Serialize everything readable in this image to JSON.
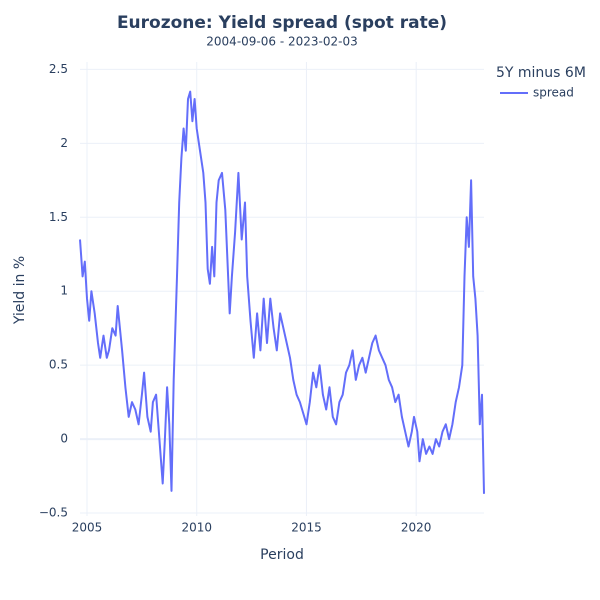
{
  "chart_data": {
    "type": "line",
    "title": "Eurozone: Yield spread (spot rate)",
    "subtitle": "2004-09-06 - 2023-02-03",
    "x_label": "Period",
    "y_label": "Yield in %",
    "legend_title": "5Y minus 6M",
    "legend_position": "top-right",
    "grid": true,
    "xlim": [
      2004.68,
      2023.09
    ],
    "xticks": [
      2005,
      2010,
      2015,
      2020
    ],
    "ylim": [
      -0.52,
      2.55
    ],
    "yticks": [
      {
        "value": -0.5,
        "label": "−0.5"
      },
      0,
      0.5,
      1,
      1.5,
      2,
      2.5
    ],
    "x": [
      2004.68,
      2004.8,
      2004.9,
      2005.0,
      2005.1,
      2005.2,
      2005.35,
      2005.5,
      2005.6,
      2005.75,
      2005.9,
      2006.0,
      2006.15,
      2006.3,
      2006.4,
      2006.5,
      2006.6,
      2006.75,
      2006.9,
      2007.05,
      2007.2,
      2007.35,
      2007.5,
      2007.6,
      2007.75,
      2007.9,
      2008.0,
      2008.15,
      2008.3,
      2008.45,
      2008.55,
      2008.65,
      2008.75,
      2008.85,
      2008.95,
      2009.1,
      2009.2,
      2009.3,
      2009.4,
      2009.5,
      2009.6,
      2009.7,
      2009.8,
      2009.9,
      2010.0,
      2010.15,
      2010.3,
      2010.4,
      2010.5,
      2010.6,
      2010.7,
      2010.8,
      2010.9,
      2011.0,
      2011.15,
      2011.3,
      2011.4,
      2011.5,
      2011.6,
      2011.75,
      2011.9,
      2012.05,
      2012.2,
      2012.3,
      2012.45,
      2012.6,
      2012.75,
      2012.9,
      2013.05,
      2013.2,
      2013.35,
      2013.5,
      2013.65,
      2013.8,
      2013.95,
      2014.1,
      2014.25,
      2014.4,
      2014.55,
      2014.7,
      2014.9,
      2015.0,
      2015.15,
      2015.3,
      2015.45,
      2015.6,
      2015.75,
      2015.9,
      2016.05,
      2016.2,
      2016.35,
      2016.5,
      2016.65,
      2016.8,
      2016.95,
      2017.1,
      2017.25,
      2017.4,
      2017.55,
      2017.7,
      2017.85,
      2018.0,
      2018.15,
      2018.3,
      2018.45,
      2018.6,
      2018.75,
      2018.9,
      2019.05,
      2019.2,
      2019.35,
      2019.5,
      2019.65,
      2019.8,
      2019.9,
      2020.05,
      2020.15,
      2020.3,
      2020.45,
      2020.6,
      2020.75,
      2020.9,
      2021.05,
      2021.2,
      2021.35,
      2021.5,
      2021.65,
      2021.8,
      2021.95,
      2022.1,
      2022.2,
      2022.3,
      2022.4,
      2022.5,
      2022.6,
      2022.7,
      2022.8,
      2022.9,
      2023.0,
      2023.09
    ],
    "series": [
      {
        "name": "spread",
        "color": "#636efa",
        "values": [
          1.35,
          1.1,
          1.2,
          0.95,
          0.8,
          1.0,
          0.85,
          0.65,
          0.55,
          0.7,
          0.55,
          0.6,
          0.75,
          0.7,
          0.9,
          0.75,
          0.6,
          0.35,
          0.15,
          0.25,
          0.2,
          0.1,
          0.3,
          0.45,
          0.15,
          0.05,
          0.25,
          0.3,
          0.0,
          -0.3,
          0.0,
          0.35,
          0.1,
          -0.35,
          0.4,
          1.1,
          1.6,
          1.9,
          2.1,
          1.95,
          2.3,
          2.35,
          2.15,
          2.3,
          2.1,
          1.95,
          1.8,
          1.6,
          1.15,
          1.05,
          1.3,
          1.1,
          1.6,
          1.75,
          1.8,
          1.55,
          1.2,
          0.85,
          1.1,
          1.4,
          1.8,
          1.35,
          1.6,
          1.1,
          0.8,
          0.55,
          0.85,
          0.6,
          0.95,
          0.65,
          0.95,
          0.75,
          0.6,
          0.85,
          0.75,
          0.65,
          0.55,
          0.4,
          0.3,
          0.25,
          0.15,
          0.1,
          0.25,
          0.45,
          0.35,
          0.5,
          0.3,
          0.2,
          0.35,
          0.15,
          0.1,
          0.25,
          0.3,
          0.45,
          0.5,
          0.6,
          0.4,
          0.5,
          0.55,
          0.45,
          0.55,
          0.65,
          0.7,
          0.6,
          0.55,
          0.5,
          0.4,
          0.35,
          0.25,
          0.3,
          0.15,
          0.05,
          -0.05,
          0.05,
          0.15,
          0.05,
          -0.15,
          0.0,
          -0.1,
          -0.05,
          -0.1,
          0.0,
          -0.05,
          0.05,
          0.1,
          0.0,
          0.1,
          0.25,
          0.35,
          0.5,
          1.1,
          1.5,
          1.3,
          1.75,
          1.1,
          0.95,
          0.7,
          0.1,
          0.3,
          -0.37
        ]
      }
    ]
  }
}
